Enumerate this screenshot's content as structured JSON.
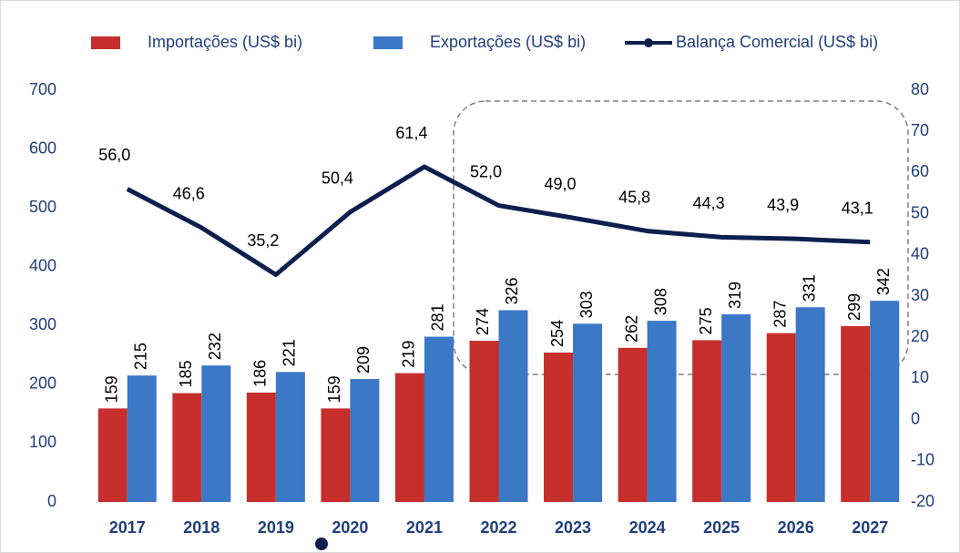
{
  "chart_data": {
    "type": "bar",
    "categories": [
      "2017",
      "2018",
      "2019",
      "2020",
      "2021",
      "2022",
      "2023",
      "2024",
      "2025",
      "2026",
      "2027"
    ],
    "series": [
      {
        "name": "Importações (US$ bi)",
        "color": "#c62f2c",
        "values": [
          159,
          185,
          186,
          159,
          219,
          274,
          254,
          262,
          275,
          287,
          299
        ]
      },
      {
        "name": "Exportações (US$ bi)",
        "color": "#3b78c6",
        "values": [
          215,
          232,
          221,
          209,
          281,
          326,
          303,
          308,
          319,
          331,
          342
        ]
      },
      {
        "name": "Balança Comercial (US$ bi)",
        "color": "#0d1f4f",
        "type": "line",
        "axis": "y2",
        "values": [
          56.0,
          46.6,
          35.2,
          50.4,
          61.4,
          52.0,
          49.0,
          45.8,
          44.3,
          43.9,
          43.1
        ],
        "value_labels": [
          "56,0",
          "46,6",
          "35,2",
          "50,4",
          "61,4",
          "52,0",
          "49,0",
          "45,8",
          "44,3",
          "43,9",
          "43,1"
        ]
      }
    ],
    "ylim": [
      0,
      700
    ],
    "yticks": [
      0,
      100,
      200,
      300,
      400,
      500,
      600,
      700
    ],
    "y2lim": [
      -20,
      80
    ],
    "y2ticks": [
      -20,
      -10,
      0,
      10,
      20,
      30,
      40,
      50,
      60,
      70,
      80
    ]
  }
}
